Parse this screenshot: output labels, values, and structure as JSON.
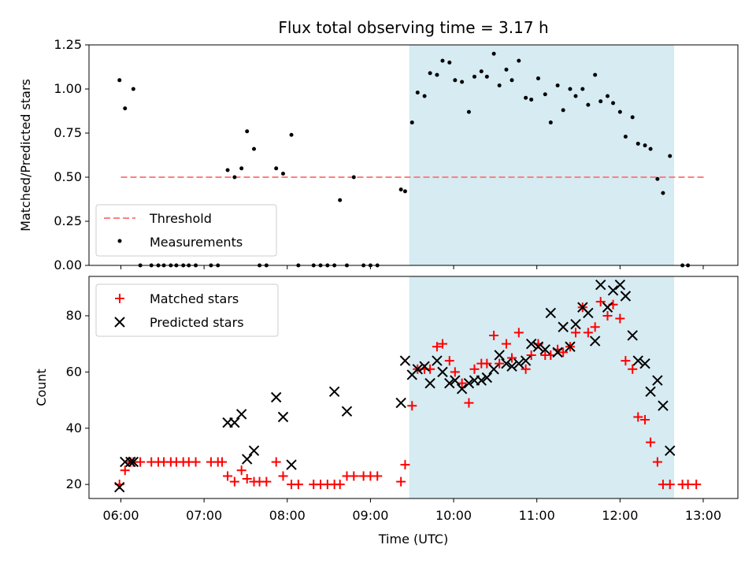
{
  "chart_data": [
    {
      "type": "scatter",
      "title": "Flux total observing time = 3.17 h",
      "ylabel": "Matched/Predicted stars",
      "xlabel": "",
      "xlim": [
        "05:37",
        "13:25"
      ],
      "ylim": [
        0,
        1.25
      ],
      "yticks": [
        "0.00",
        "0.25",
        "0.50",
        "0.75",
        "1.00",
        "1.25"
      ],
      "xticks": [
        "06:00",
        "07:00",
        "08:00",
        "09:00",
        "10:00",
        "11:00",
        "12:00",
        "13:00"
      ],
      "grid": false,
      "legend_position": "lower-left",
      "shaded_region": {
        "x": [
          "09:28",
          "12:39"
        ],
        "color": "#add8e6"
      },
      "threshold": {
        "name": "Threshold",
        "y": 0.5,
        "x": [
          "06:00",
          "13:02"
        ],
        "color": "#ff7f7f"
      },
      "series": [
        {
          "name": "Measurements",
          "color": "#000000",
          "marker": "dot",
          "points": [
            [
              "05:59",
              1.05
            ],
            [
              "06:03",
              0.89
            ],
            [
              "06:09",
              1.0
            ],
            [
              "06:14",
              0.0
            ],
            [
              "06:22",
              0.0
            ],
            [
              "06:27",
              0.0
            ],
            [
              "06:31",
              0.0
            ],
            [
              "06:36",
              0.0
            ],
            [
              "06:40",
              0.0
            ],
            [
              "06:45",
              0.0
            ],
            [
              "06:49",
              0.0
            ],
            [
              "06:54",
              0.0
            ],
            [
              "07:05",
              0.0
            ],
            [
              "07:10",
              0.0
            ],
            [
              "07:17",
              0.54
            ],
            [
              "07:22",
              0.5
            ],
            [
              "07:27",
              0.55
            ],
            [
              "07:31",
              0.76
            ],
            [
              "07:36",
              0.66
            ],
            [
              "07:40",
              0.0
            ],
            [
              "07:45",
              0.0
            ],
            [
              "07:52",
              0.55
            ],
            [
              "07:57",
              0.52
            ],
            [
              "08:03",
              0.74
            ],
            [
              "08:08",
              0.0
            ],
            [
              "08:19",
              0.0
            ],
            [
              "08:24",
              0.0
            ],
            [
              "08:29",
              0.0
            ],
            [
              "08:34",
              0.0
            ],
            [
              "08:38",
              0.37
            ],
            [
              "08:43",
              0.0
            ],
            [
              "08:48",
              0.5
            ],
            [
              "08:55",
              0.0
            ],
            [
              "09:00",
              0.0
            ],
            [
              "09:05",
              0.0
            ],
            [
              "09:22",
              0.43
            ],
            [
              "09:25",
              0.42
            ],
            [
              "09:30",
              0.81
            ],
            [
              "09:34",
              0.98
            ],
            [
              "09:39",
              0.96
            ],
            [
              "09:43",
              1.09
            ],
            [
              "09:48",
              1.08
            ],
            [
              "09:52",
              1.16
            ],
            [
              "09:57",
              1.15
            ],
            [
              "10:01",
              1.05
            ],
            [
              "10:06",
              1.04
            ],
            [
              "10:11",
              0.87
            ],
            [
              "10:15",
              1.07
            ],
            [
              "10:20",
              1.1
            ],
            [
              "10:24",
              1.07
            ],
            [
              "10:29",
              1.2
            ],
            [
              "10:33",
              1.02
            ],
            [
              "10:38",
              1.11
            ],
            [
              "10:42",
              1.05
            ],
            [
              "10:47",
              1.16
            ],
            [
              "10:52",
              0.95
            ],
            [
              "10:56",
              0.94
            ],
            [
              "11:01",
              1.06
            ],
            [
              "11:06",
              0.97
            ],
            [
              "11:10",
              0.81
            ],
            [
              "11:15",
              1.02
            ],
            [
              "11:19",
              0.88
            ],
            [
              "11:24",
              1.0
            ],
            [
              "11:28",
              0.96
            ],
            [
              "11:33",
              1.0
            ],
            [
              "11:37",
              0.91
            ],
            [
              "11:42",
              1.08
            ],
            [
              "11:46",
              0.93
            ],
            [
              "11:51",
              0.96
            ],
            [
              "11:55",
              0.92
            ],
            [
              "12:00",
              0.87
            ],
            [
              "12:04",
              0.73
            ],
            [
              "12:09",
              0.84
            ],
            [
              "12:13",
              0.69
            ],
            [
              "12:18",
              0.68
            ],
            [
              "12:22",
              0.66
            ],
            [
              "12:27",
              0.49
            ],
            [
              "12:31",
              0.41
            ],
            [
              "12:36",
              0.62
            ],
            [
              "12:45",
              0.0
            ],
            [
              "12:49",
              0.0
            ]
          ]
        }
      ]
    },
    {
      "type": "scatter",
      "title": "",
      "ylabel": "Count",
      "xlabel": "Time (UTC)",
      "xlim": [
        "05:37",
        "13:25"
      ],
      "ylim": [
        15,
        94
      ],
      "yticks": [
        "20",
        "40",
        "60",
        "80"
      ],
      "xticks": [
        "06:00",
        "07:00",
        "08:00",
        "09:00",
        "10:00",
        "11:00",
        "12:00",
        "13:00"
      ],
      "grid": false,
      "legend_position": "upper-left",
      "shaded_region": {
        "x": [
          "09:28",
          "12:39"
        ],
        "color": "#add8e6"
      },
      "series": [
        {
          "name": "Matched stars",
          "color": "#ff0000",
          "marker": "plus",
          "points": [
            [
              "05:59",
              20
            ],
            [
              "06:03",
              25
            ],
            [
              "06:07",
              28
            ],
            [
              "06:09",
              28
            ],
            [
              "06:14",
              28
            ],
            [
              "06:22",
              28
            ],
            [
              "06:27",
              28
            ],
            [
              "06:31",
              28
            ],
            [
              "06:36",
              28
            ],
            [
              "06:40",
              28
            ],
            [
              "06:45",
              28
            ],
            [
              "06:49",
              28
            ],
            [
              "06:54",
              28
            ],
            [
              "07:05",
              28
            ],
            [
              "07:10",
              28
            ],
            [
              "07:13",
              28
            ],
            [
              "07:17",
              23
            ],
            [
              "07:22",
              21
            ],
            [
              "07:27",
              25
            ],
            [
              "07:31",
              22
            ],
            [
              "07:36",
              21
            ],
            [
              "07:40",
              21
            ],
            [
              "07:45",
              21
            ],
            [
              "07:52",
              28
            ],
            [
              "07:57",
              23
            ],
            [
              "08:03",
              20
            ],
            [
              "08:08",
              20
            ],
            [
              "08:19",
              20
            ],
            [
              "08:24",
              20
            ],
            [
              "08:29",
              20
            ],
            [
              "08:34",
              20
            ],
            [
              "08:38",
              20
            ],
            [
              "08:43",
              23
            ],
            [
              "08:48",
              23
            ],
            [
              "08:55",
              23
            ],
            [
              "09:00",
              23
            ],
            [
              "09:05",
              23
            ],
            [
              "09:22",
              21
            ],
            [
              "09:25",
              27
            ],
            [
              "09:30",
              48
            ],
            [
              "09:34",
              61
            ],
            [
              "09:39",
              61
            ],
            [
              "09:43",
              61
            ],
            [
              "09:48",
              69
            ],
            [
              "09:52",
              70
            ],
            [
              "09:57",
              64
            ],
            [
              "10:01",
              60
            ],
            [
              "10:06",
              56
            ],
            [
              "10:11",
              49
            ],
            [
              "10:15",
              61
            ],
            [
              "10:20",
              63
            ],
            [
              "10:24",
              63
            ],
            [
              "10:29",
              73
            ],
            [
              "10:33",
              63
            ],
            [
              "10:38",
              70
            ],
            [
              "10:42",
              65
            ],
            [
              "10:47",
              74
            ],
            [
              "10:52",
              61
            ],
            [
              "10:56",
              66
            ],
            [
              "11:01",
              70
            ],
            [
              "11:06",
              66
            ],
            [
              "11:10",
              66
            ],
            [
              "11:15",
              68
            ],
            [
              "11:19",
              67
            ],
            [
              "11:24",
              69
            ],
            [
              "11:28",
              74
            ],
            [
              "11:33",
              83
            ],
            [
              "11:37",
              74
            ],
            [
              "11:42",
              76
            ],
            [
              "11:46",
              85
            ],
            [
              "11:51",
              80
            ],
            [
              "11:55",
              84
            ],
            [
              "12:00",
              79
            ],
            [
              "12:04",
              64
            ],
            [
              "12:09",
              61
            ],
            [
              "12:13",
              44
            ],
            [
              "12:18",
              43
            ],
            [
              "12:22",
              35
            ],
            [
              "12:27",
              28
            ],
            [
              "12:31",
              20
            ],
            [
              "12:36",
              20
            ],
            [
              "12:45",
              20
            ],
            [
              "12:49",
              20
            ],
            [
              "12:55",
              20
            ]
          ]
        },
        {
          "name": "Predicted stars",
          "color": "#000000",
          "marker": "x",
          "points": [
            [
              "05:59",
              19
            ],
            [
              "06:03",
              28
            ],
            [
              "06:07",
              28
            ],
            [
              "06:09",
              28
            ],
            [
              "07:17",
              42
            ],
            [
              "07:22",
              42
            ],
            [
              "07:27",
              45
            ],
            [
              "07:31",
              29
            ],
            [
              "07:36",
              32
            ],
            [
              "07:52",
              51
            ],
            [
              "07:57",
              44
            ],
            [
              "08:03",
              27
            ],
            [
              "08:34",
              53
            ],
            [
              "08:43",
              46
            ],
            [
              "09:22",
              49
            ],
            [
              "09:25",
              64
            ],
            [
              "09:30",
              59
            ],
            [
              "09:34",
              61
            ],
            [
              "09:39",
              62
            ],
            [
              "09:43",
              56
            ],
            [
              "09:48",
              64
            ],
            [
              "09:52",
              60
            ],
            [
              "09:57",
              56
            ],
            [
              "10:01",
              57
            ],
            [
              "10:06",
              54
            ],
            [
              "10:11",
              56
            ],
            [
              "10:15",
              57
            ],
            [
              "10:20",
              57
            ],
            [
              "10:24",
              58
            ],
            [
              "10:29",
              61
            ],
            [
              "10:33",
              66
            ],
            [
              "10:38",
              63
            ],
            [
              "10:42",
              62
            ],
            [
              "10:47",
              63
            ],
            [
              "10:52",
              64
            ],
            [
              "10:56",
              70
            ],
            [
              "11:01",
              69
            ],
            [
              "11:06",
              68
            ],
            [
              "11:10",
              81
            ],
            [
              "11:15",
              67
            ],
            [
              "11:19",
              76
            ],
            [
              "11:24",
              69
            ],
            [
              "11:28",
              77
            ],
            [
              "11:33",
              83
            ],
            [
              "11:37",
              81
            ],
            [
              "11:42",
              71
            ],
            [
              "11:46",
              91
            ],
            [
              "11:51",
              83
            ],
            [
              "11:55",
              89
            ],
            [
              "12:00",
              91
            ],
            [
              "12:04",
              87
            ],
            [
              "12:09",
              73
            ],
            [
              "12:13",
              64
            ],
            [
              "12:18",
              63
            ],
            [
              "12:22",
              53
            ],
            [
              "12:27",
              57
            ],
            [
              "12:31",
              48
            ],
            [
              "12:36",
              32
            ]
          ]
        }
      ]
    }
  ]
}
